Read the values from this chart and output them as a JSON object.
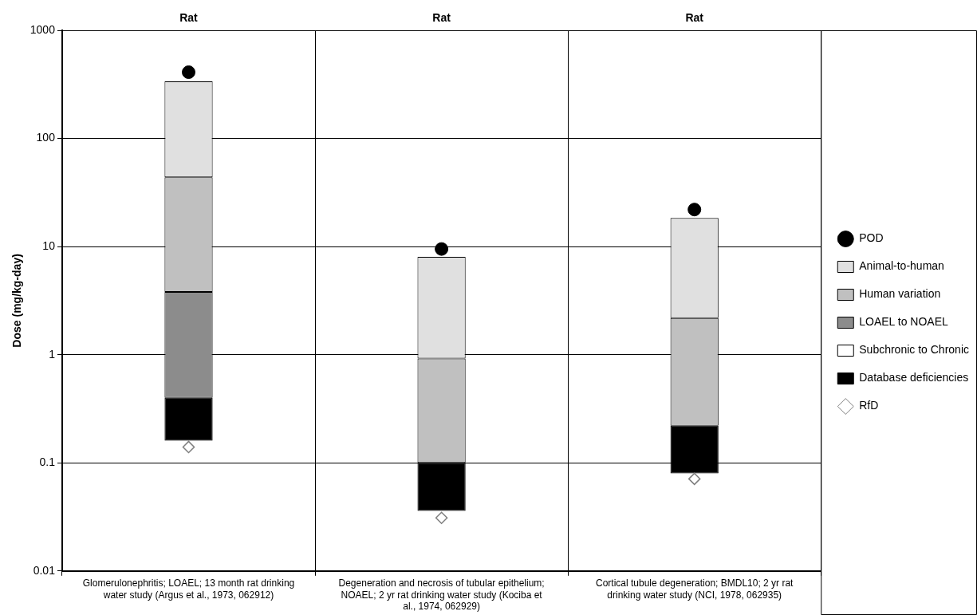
{
  "chart_data": {
    "type": "bar",
    "ylabel": "Dose (mg/kg-day)",
    "categories": [
      "Glomerulonephritis; LOAEL; 13 month rat  drinking water study (Argus et al., 1973, 062912)",
      "Degeneration and necrosis of tubular epithelium; NOAEL; 2 yr rat drinking water study (Kociba et al., 1974, 062929)",
      "Cortical tubule degeneration; BMDL10; 2 yr rat drinking water study (NCI, 1978, 062935)"
    ],
    "series": [
      {
        "name": "POD",
        "type": "scatter",
        "marker": "circle",
        "color": "#000000",
        "values": [
          410,
          9.5,
          22
        ]
      },
      {
        "name": "Animal-to-human",
        "color": "#e0e0e0",
        "base": [
          43.8,
          0.92,
          2.18
        ],
        "values": [
          294,
          7.1,
          16.2
        ]
      },
      {
        "name": "Human variation",
        "color": "#c0c0c0",
        "base": [
          3.8,
          0.1,
          0.22
        ],
        "values": [
          40,
          0.82,
          1.96
        ]
      },
      {
        "name": "LOAEL to NOAEL",
        "color": "#8c8c8c",
        "base": [
          0.4,
          null,
          null
        ],
        "values": [
          3.4,
          null,
          null
        ]
      },
      {
        "name": "Subchronic to Chronic",
        "color": "#ffffff",
        "values": [
          null,
          null,
          null
        ]
      },
      {
        "name": "Database deficiencies",
        "color": "#000000",
        "base": [
          0.16,
          0.036,
          0.08
        ],
        "values": [
          0.24,
          0.064,
          0.14
        ]
      },
      {
        "name": "RfD",
        "type": "scatter",
        "marker": "diamond",
        "color": "#7f7f7f",
        "values": [
          0.14,
          0.031,
          0.071
        ]
      }
    ],
    "log": "y",
    "ylim": [
      0.01,
      1000
    ],
    "yticks": [
      0.01,
      0.1,
      1,
      10,
      100,
      1000
    ],
    "grid": true,
    "legend": "right",
    "annotations": [
      "Rat",
      "Rat",
      "Rat"
    ]
  }
}
